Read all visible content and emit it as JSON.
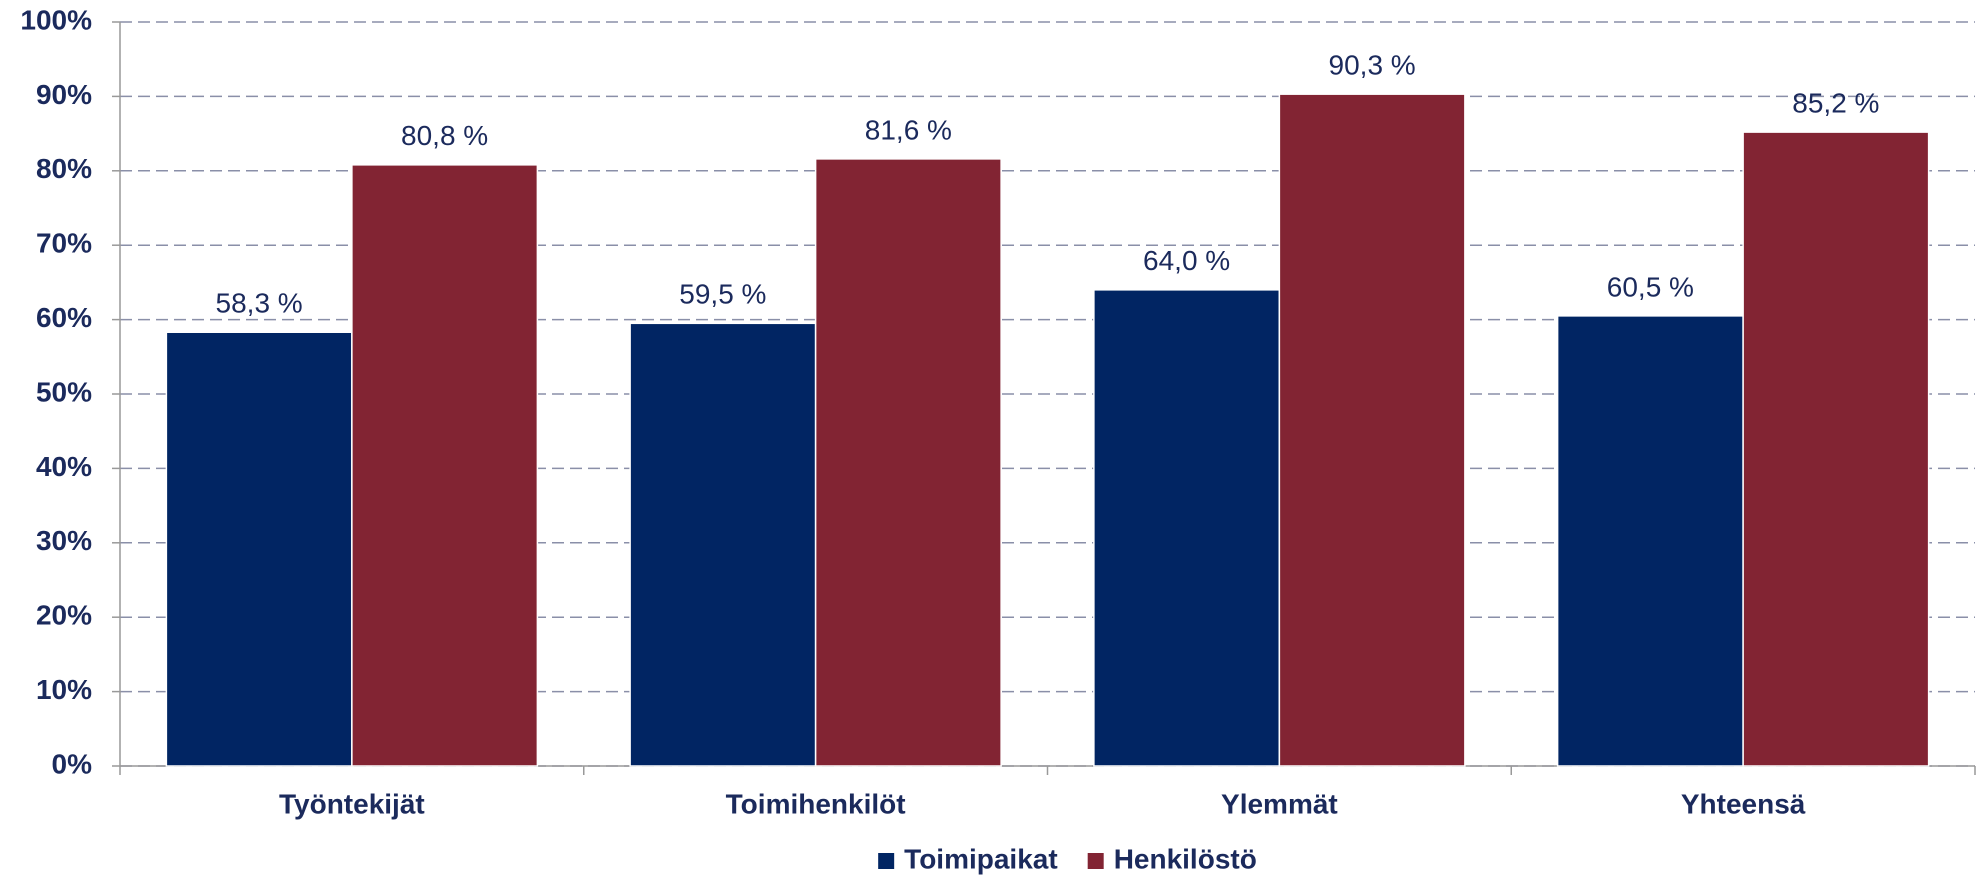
{
  "chart_data": {
    "type": "bar",
    "categories": [
      "Työntekijät",
      "Toimihenkilöt",
      "Ylemmät",
      "Yhteensä"
    ],
    "series": [
      {
        "name": "Toimipaikat",
        "color": "#012563",
        "values": [
          58.3,
          59.5,
          64.0,
          60.5
        ],
        "value_labels": [
          "58,3 %",
          "59,5 %",
          "64,0 %",
          "60,5 %"
        ]
      },
      {
        "name": "Henkilöstö",
        "color": "#822433",
        "values": [
          80.8,
          81.6,
          90.3,
          85.2
        ],
        "value_labels": [
          "80,8 %",
          "81,6 %",
          "90,3 %",
          "85,2 %"
        ]
      }
    ],
    "ylim": [
      0,
      100
    ],
    "yticks": [
      {
        "value": 0,
        "label": "0%"
      },
      {
        "value": 10,
        "label": "10%"
      },
      {
        "value": 20,
        "label": "20%"
      },
      {
        "value": 30,
        "label": "30%"
      },
      {
        "value": 40,
        "label": "40%"
      },
      {
        "value": 50,
        "label": "50%"
      },
      {
        "value": 60,
        "label": "60%"
      },
      {
        "value": 70,
        "label": "70%"
      },
      {
        "value": 80,
        "label": "80%"
      },
      {
        "value": 90,
        "label": "90%"
      },
      {
        "value": 100,
        "label": "100%"
      }
    ],
    "grid": true,
    "legend": "bottom"
  }
}
